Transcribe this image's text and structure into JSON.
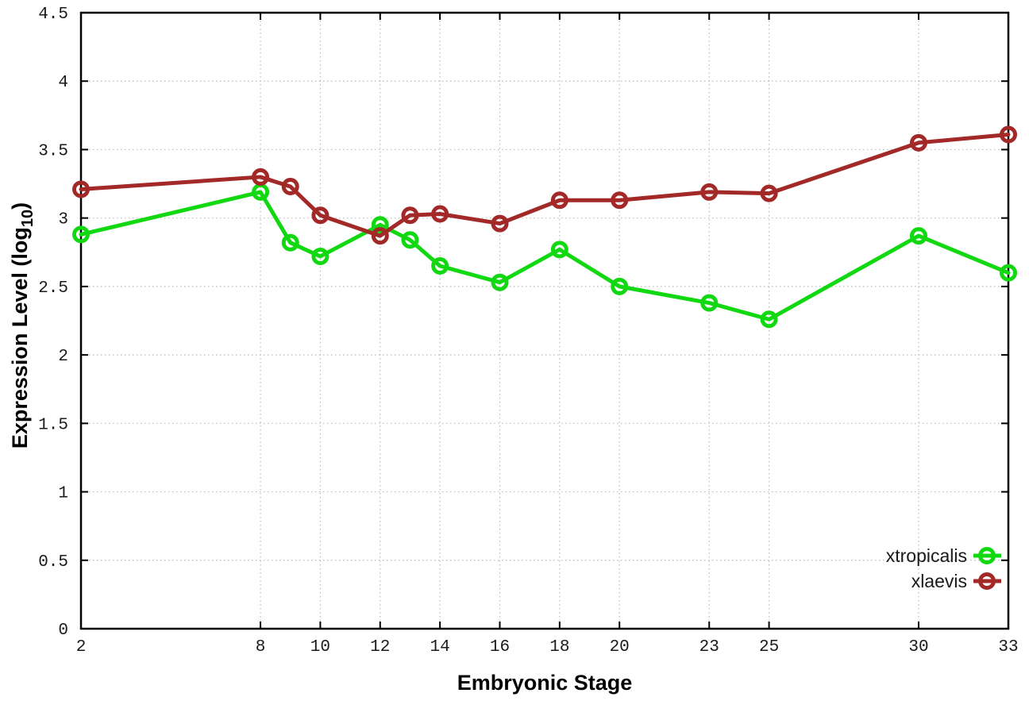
{
  "chart_data": {
    "type": "line",
    "title": "",
    "xlabel": "Embryonic Stage",
    "ylabel": {
      "main": "Expression Level (log",
      "sub": "10",
      "suffix": ")"
    },
    "x": [
      2,
      8,
      9,
      10,
      12,
      13,
      14,
      16,
      18,
      20,
      23,
      25,
      30,
      33
    ],
    "series": [
      {
        "name": "xtropicalis",
        "color": "#12d812",
        "values": [
          2.88,
          3.19,
          2.82,
          2.72,
          2.95,
          2.84,
          2.65,
          2.53,
          2.77,
          2.5,
          2.38,
          2.26,
          2.87,
          2.6
        ]
      },
      {
        "name": "xlaevis",
        "color": "#a32929",
        "values": [
          3.21,
          3.3,
          3.23,
          3.02,
          2.87,
          3.02,
          3.03,
          2.96,
          3.13,
          3.13,
          3.19,
          3.18,
          3.55,
          3.61
        ]
      }
    ],
    "xlim": [
      2,
      33
    ],
    "ylim": [
      0,
      4.5
    ],
    "x_ticks": [
      2,
      8,
      10,
      12,
      14,
      16,
      18,
      20,
      23,
      25,
      30,
      33
    ],
    "x_tick_labels": [
      "2",
      "8",
      "10",
      "12",
      "14",
      "16",
      "18",
      "20",
      "23",
      "25",
      "30",
      "33"
    ],
    "y_ticks": [
      0,
      0.5,
      1,
      1.5,
      2,
      2.5,
      3,
      3.5,
      4,
      4.5
    ],
    "y_tick_labels": [
      "0",
      "0.5",
      "1",
      "1.5",
      "2",
      "2.5",
      "3",
      "3.5",
      "4",
      "4.5"
    ],
    "grid": true,
    "legend_position": "bottom-right",
    "legend_entries": [
      "xtropicalis",
      "xlaevis"
    ]
  },
  "colors": {
    "background": "#ffffff",
    "axis": "#000000",
    "grid": "#bbbbbb",
    "tick_text": "#1a1a1a",
    "title_text": "#000000",
    "series_xtropicalis": "#12d812",
    "series_xlaevis": "#a32929"
  }
}
